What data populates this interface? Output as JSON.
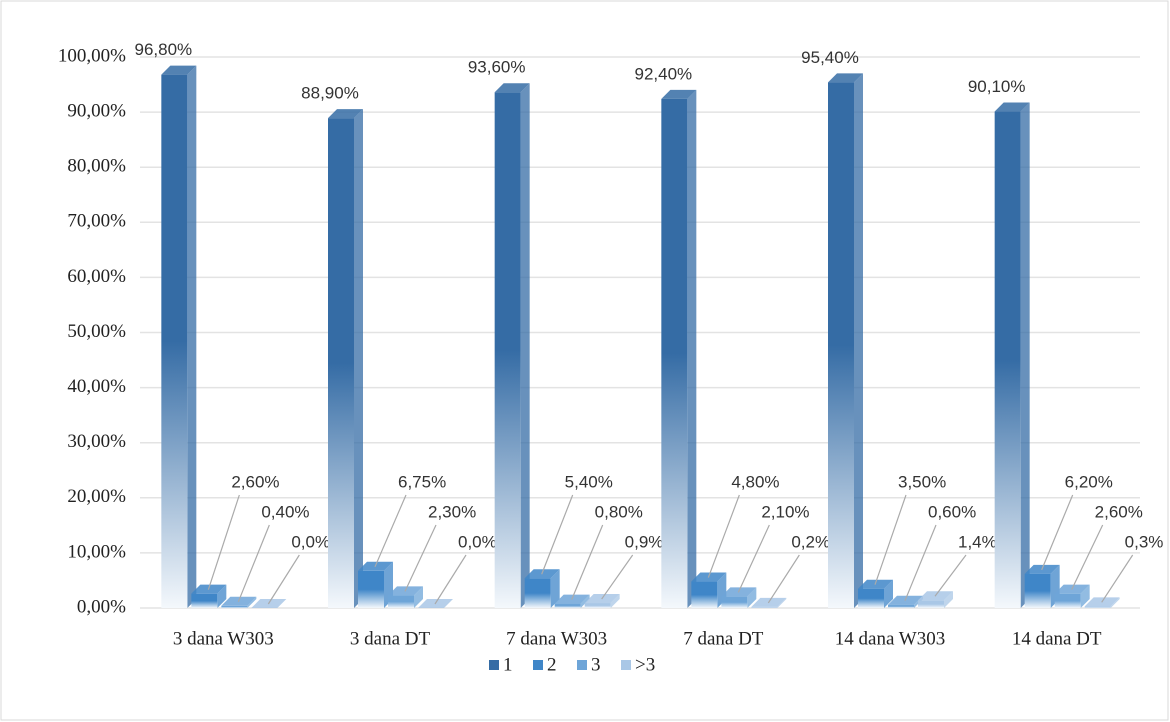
{
  "chart_data": {
    "type": "bar",
    "categories": [
      "3 dana W303",
      "3 dana DT",
      "7 dana W303",
      "7 dana DT",
      "14 dana W303",
      "14 dana DT"
    ],
    "series": [
      {
        "name": "1",
        "color": "#356ca5",
        "values": [
          96.8,
          88.9,
          93.6,
          92.4,
          95.4,
          90.1
        ],
        "value_labels": [
          "96,80%",
          "88,90%",
          "93,60%",
          "92,40%",
          "95,40%",
          "90,10%"
        ]
      },
      {
        "name": "2",
        "color": "#3f86c8",
        "values": [
          2.6,
          6.75,
          5.4,
          4.8,
          3.5,
          6.2
        ],
        "value_labels": [
          "2,60%",
          "6,75%",
          "5,40%",
          "4,80%",
          "3,50%",
          "6,20%"
        ]
      },
      {
        "name": "3",
        "color": "#6ea5d8",
        "values": [
          0.4,
          2.3,
          0.8,
          2.1,
          0.6,
          2.6
        ],
        "value_labels": [
          "0,40%",
          "2,30%",
          "0,80%",
          "2,10%",
          "0,60%",
          "2,60%"
        ]
      },
      {
        "name": ">3",
        "color": "#a9c7e6",
        "values": [
          0.0,
          0.0,
          0.9,
          0.2,
          1.4,
          0.3
        ],
        "value_labels": [
          "0,0%",
          "0,0%",
          "0,9%",
          "0,2%",
          "1,4%",
          "0,3%"
        ]
      }
    ],
    "ylim": [
      0,
      100
    ],
    "yticks": [
      {
        "value": 0,
        "label": "0,00%"
      },
      {
        "value": 10,
        "label": "10,00%"
      },
      {
        "value": 20,
        "label": "20,00%"
      },
      {
        "value": 30,
        "label": "30,00%"
      },
      {
        "value": 40,
        "label": "40,00%"
      },
      {
        "value": 50,
        "label": "50,00%"
      },
      {
        "value": 60,
        "label": "60,00%"
      },
      {
        "value": 70,
        "label": "70,00%"
      },
      {
        "value": 80,
        "label": "80,00%"
      },
      {
        "value": 90,
        "label": "90,00%"
      },
      {
        "value": 100,
        "label": "100,00%"
      }
    ],
    "grid": true,
    "legend": "bottom"
  }
}
